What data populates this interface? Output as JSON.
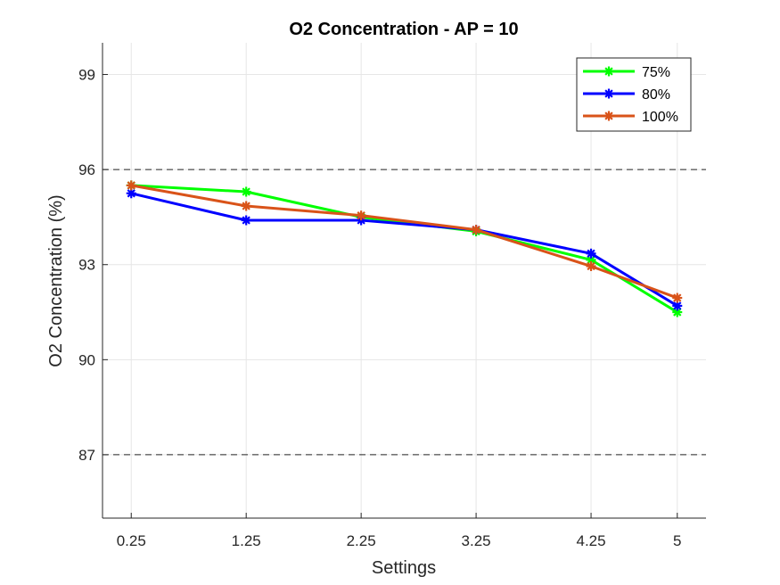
{
  "chart_data": {
    "type": "line",
    "title": "O2 Concentration - AP = 10",
    "xlabel": "Settings",
    "ylabel": "O2 Concentration (%)",
    "categories": [
      "0.25",
      "1.25",
      "2.25",
      "3.25",
      "4.25",
      "5"
    ],
    "x": [
      0.25,
      1.25,
      2.25,
      3.25,
      4.25,
      5
    ],
    "xlim": [
      0,
      5.25
    ],
    "ylim": [
      85,
      100
    ],
    "yticks": [
      87,
      90,
      93,
      96,
      99
    ],
    "reference_lines": [
      96,
      87
    ],
    "grid": true,
    "legend_position": "top-right",
    "series": [
      {
        "name": "75%",
        "color": "#00ff00",
        "values": [
          95.5,
          95.3,
          94.5,
          94.05,
          93.15,
          91.5
        ]
      },
      {
        "name": "80%",
        "color": "#0000ff",
        "values": [
          95.25,
          94.4,
          94.4,
          94.1,
          93.35,
          91.7
        ]
      },
      {
        "name": "100%",
        "color": "#d95319",
        "values": [
          95.5,
          94.85,
          94.55,
          94.1,
          92.95,
          91.95
        ]
      }
    ]
  }
}
